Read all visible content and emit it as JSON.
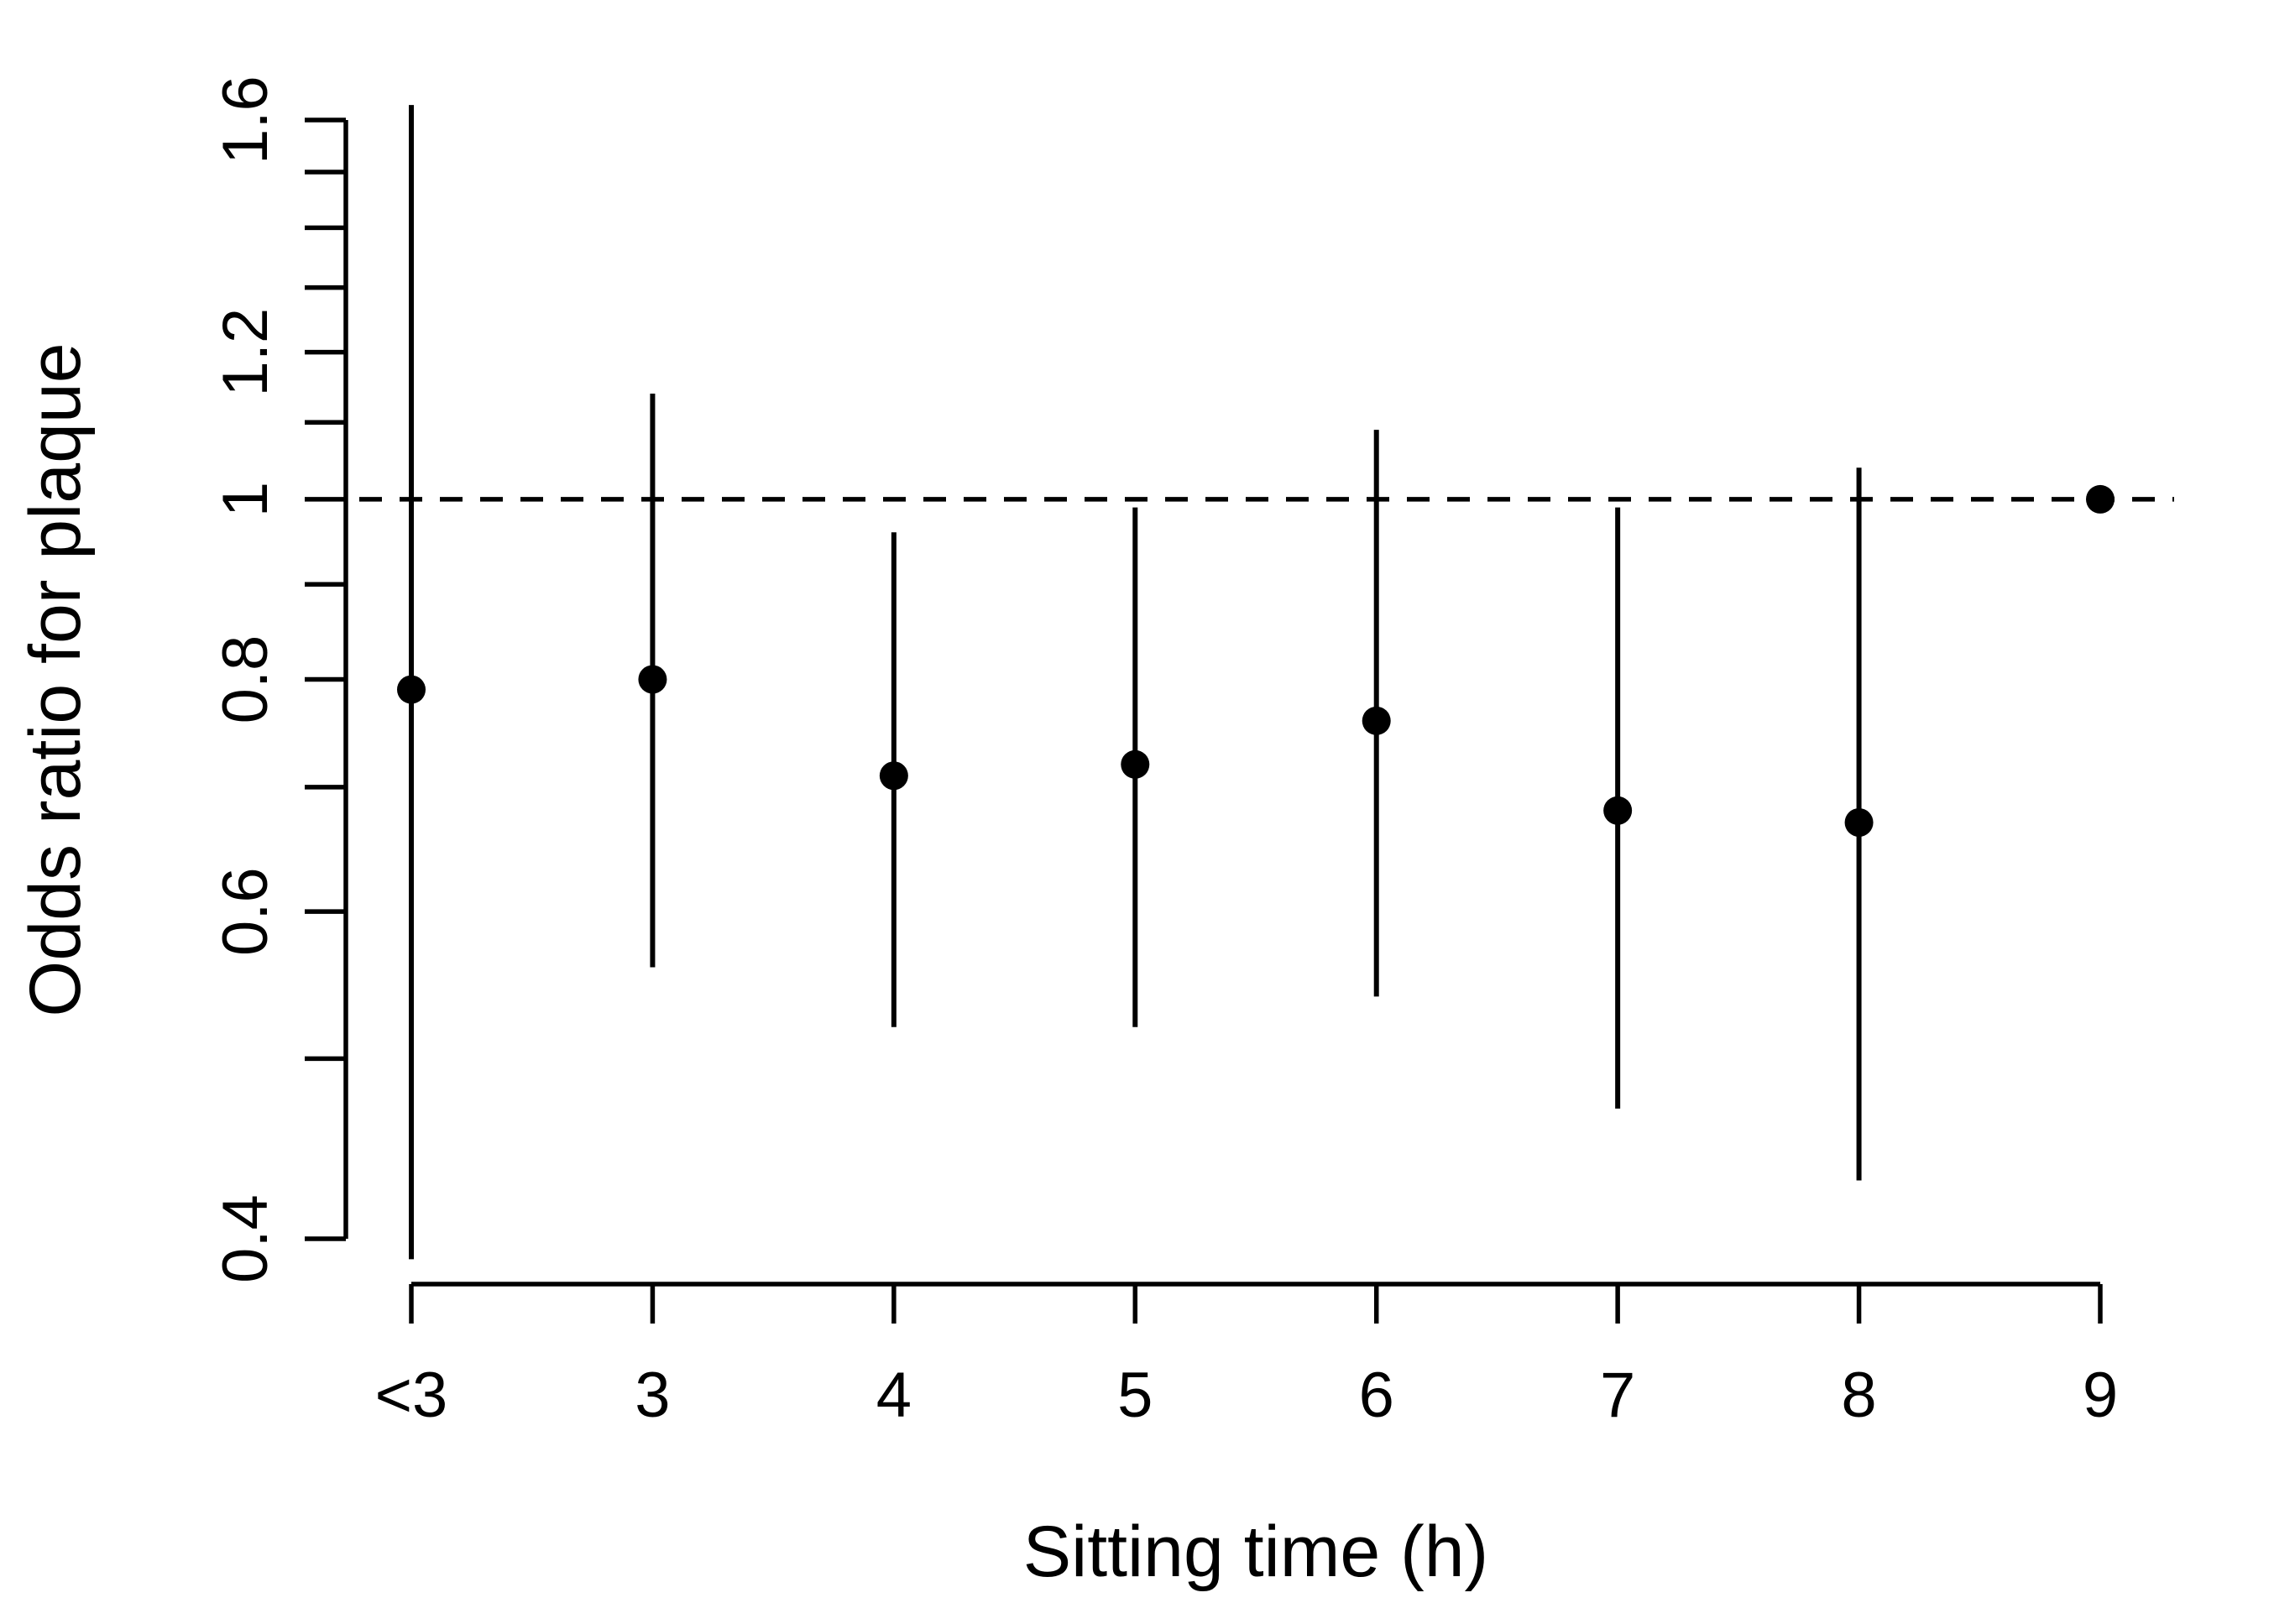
{
  "figure": {
    "background_color": "#ffffff",
    "ink_color": "#000000"
  },
  "chart_data": {
    "type": "scatter",
    "subtype": "point-range-odds-ratio",
    "title": "",
    "xlabel": "Sitting time (h)",
    "ylabel": "Odds ratio for plaque",
    "x_categories": [
      "<3",
      "3",
      "4",
      "5",
      "6",
      "7",
      "8",
      "9"
    ],
    "y_scale": "log",
    "ylim": [
      0.4,
      1.6
    ],
    "y_minor_tick_values": [
      0.4,
      0.5,
      0.6,
      0.7,
      0.8,
      0.9,
      1.0,
      1.1,
      1.2,
      1.3,
      1.4,
      1.5,
      1.6
    ],
    "y_labeled_ticks": [
      {
        "value": 0.4,
        "label": "0.4"
      },
      {
        "value": 0.6,
        "label": "0.6"
      },
      {
        "value": 0.8,
        "label": "0.8"
      },
      {
        "value": 1.0,
        "label": "1"
      },
      {
        "value": 1.2,
        "label": "1.2"
      },
      {
        "value": 1.6,
        "label": "1.6"
      }
    ],
    "reference_line_y": 1.0,
    "reference_line_style": "dashed",
    "grid": false,
    "legend": false,
    "points": [
      {
        "category": "<3",
        "or": 0.79,
        "ci_low": 0.39,
        "ci_high": 1.63,
        "reference": false
      },
      {
        "category": "3",
        "or": 0.8,
        "ci_low": 0.56,
        "ci_high": 1.14,
        "reference": false
      },
      {
        "category": "4",
        "or": 0.71,
        "ci_low": 0.52,
        "ci_high": 0.96,
        "reference": false
      },
      {
        "category": "5",
        "or": 0.72,
        "ci_low": 0.52,
        "ci_high": 0.99,
        "reference": false
      },
      {
        "category": "6",
        "or": 0.76,
        "ci_low": 0.54,
        "ci_high": 1.09,
        "reference": false
      },
      {
        "category": "7",
        "or": 0.68,
        "ci_low": 0.47,
        "ci_high": 0.99,
        "reference": false
      },
      {
        "category": "8",
        "or": 0.67,
        "ci_low": 0.43,
        "ci_high": 1.04,
        "reference": false
      },
      {
        "category": "9",
        "or": 1.0,
        "ci_low": null,
        "ci_high": null,
        "reference": true
      }
    ]
  }
}
